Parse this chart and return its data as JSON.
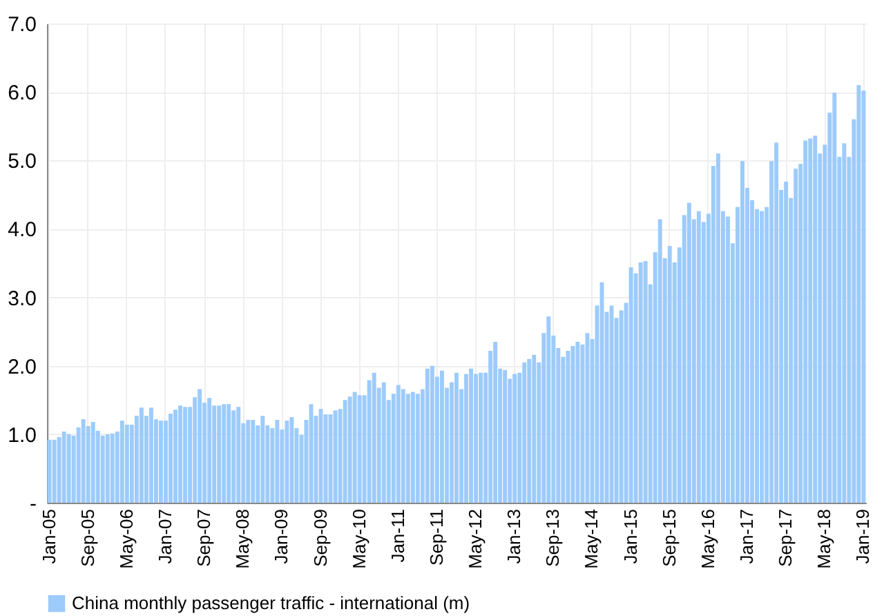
{
  "chart_data": {
    "type": "bar",
    "categories": [
      "Jan-05",
      null,
      null,
      null,
      null,
      null,
      null,
      null,
      "Sep-05",
      null,
      null,
      null,
      null,
      null,
      null,
      null,
      "May-06",
      null,
      null,
      null,
      null,
      null,
      null,
      null,
      "Jan-07",
      null,
      null,
      null,
      null,
      null,
      null,
      null,
      "Sep-07",
      null,
      null,
      null,
      null,
      null,
      null,
      null,
      "May-08",
      null,
      null,
      null,
      null,
      null,
      null,
      null,
      "Jan-09",
      null,
      null,
      null,
      null,
      null,
      null,
      null,
      "Sep-09",
      null,
      null,
      null,
      null,
      null,
      null,
      null,
      "May-10",
      null,
      null,
      null,
      null,
      null,
      null,
      null,
      "Jan-11",
      null,
      null,
      null,
      null,
      null,
      null,
      null,
      "Sep-11",
      null,
      null,
      null,
      null,
      null,
      null,
      null,
      "May-12",
      null,
      null,
      null,
      null,
      null,
      null,
      null,
      "Jan-13",
      null,
      null,
      null,
      null,
      null,
      null,
      null,
      "Sep-13",
      null,
      null,
      null,
      null,
      null,
      null,
      null,
      "May-14",
      null,
      null,
      null,
      null,
      null,
      null,
      null,
      "Jan-15",
      null,
      null,
      null,
      null,
      null,
      null,
      null,
      "Sep-15",
      null,
      null,
      null,
      null,
      null,
      null,
      null,
      "May-16",
      null,
      null,
      null,
      null,
      null,
      null,
      null,
      "Jan-17",
      null,
      null,
      null,
      null,
      null,
      null,
      null,
      "Sep-17",
      null,
      null,
      null,
      null,
      null,
      null,
      null,
      "May-18",
      null,
      null,
      null,
      null,
      null,
      null,
      null,
      "Jan-19"
    ],
    "series": [
      {
        "name": "China monthly passenger traffic - international (m)",
        "color": "#9dcbfb",
        "values": [
          0.92,
          0.92,
          0.96,
          1.04,
          1.0,
          0.98,
          1.1,
          1.22,
          1.12,
          1.18,
          1.05,
          0.98,
          1.0,
          1.01,
          1.04,
          1.2,
          1.14,
          1.14,
          1.27,
          1.39,
          1.27,
          1.39,
          1.22,
          1.2,
          1.2,
          1.3,
          1.36,
          1.42,
          1.4,
          1.4,
          1.54,
          1.66,
          1.46,
          1.53,
          1.42,
          1.42,
          1.44,
          1.44,
          1.35,
          1.4,
          1.16,
          1.21,
          1.21,
          1.13,
          1.27,
          1.13,
          1.09,
          1.21,
          1.07,
          1.2,
          1.25,
          1.09,
          0.99,
          1.21,
          1.44,
          1.27,
          1.37,
          1.29,
          1.29,
          1.35,
          1.37,
          1.5,
          1.55,
          1.62,
          1.57,
          1.57,
          1.79,
          1.9,
          1.68,
          1.76,
          1.5,
          1.59,
          1.72,
          1.66,
          1.59,
          1.62,
          1.59,
          1.66,
          1.96,
          2.0,
          1.84,
          1.93,
          1.68,
          1.76,
          1.9,
          1.66,
          1.88,
          1.96,
          1.88,
          1.9,
          1.9,
          2.22,
          2.35,
          1.96,
          1.94,
          1.81,
          1.88,
          1.9,
          2.05,
          2.1,
          2.16,
          2.05,
          2.48,
          2.72,
          2.44,
          2.26,
          2.13,
          2.22,
          2.29,
          2.35,
          2.31,
          2.48,
          2.39,
          2.88,
          3.22,
          2.79,
          2.88,
          2.7,
          2.81,
          2.92,
          3.44,
          3.35,
          3.51,
          3.53,
          3.19,
          3.66,
          4.14,
          3.57,
          3.75,
          3.51,
          3.73,
          4.2,
          4.38,
          4.14,
          4.26,
          4.1,
          4.22,
          4.92,
          5.1,
          4.26,
          4.18,
          3.79,
          4.32,
          4.99,
          4.6,
          4.42,
          4.29,
          4.26,
          4.32,
          4.99,
          5.26,
          4.57,
          4.69,
          4.45,
          4.88,
          4.95,
          5.29,
          5.32,
          5.36,
          5.1,
          5.23,
          5.7,
          5.99,
          5.05,
          5.25,
          5.05,
          5.6,
          6.1,
          6.02
        ]
      }
    ],
    "ylim": [
      0,
      7
    ],
    "yticks": [
      {
        "value": 0,
        "label": "-"
      },
      {
        "value": 1,
        "label": "1.0"
      },
      {
        "value": 2,
        "label": "2.0"
      },
      {
        "value": 3,
        "label": "3.0"
      },
      {
        "value": 4,
        "label": "4.0"
      },
      {
        "value": 5,
        "label": "5.0"
      },
      {
        "value": 6,
        "label": "6.0"
      },
      {
        "value": 7,
        "label": "7.0"
      }
    ],
    "grid": true,
    "legend": "bottom"
  }
}
